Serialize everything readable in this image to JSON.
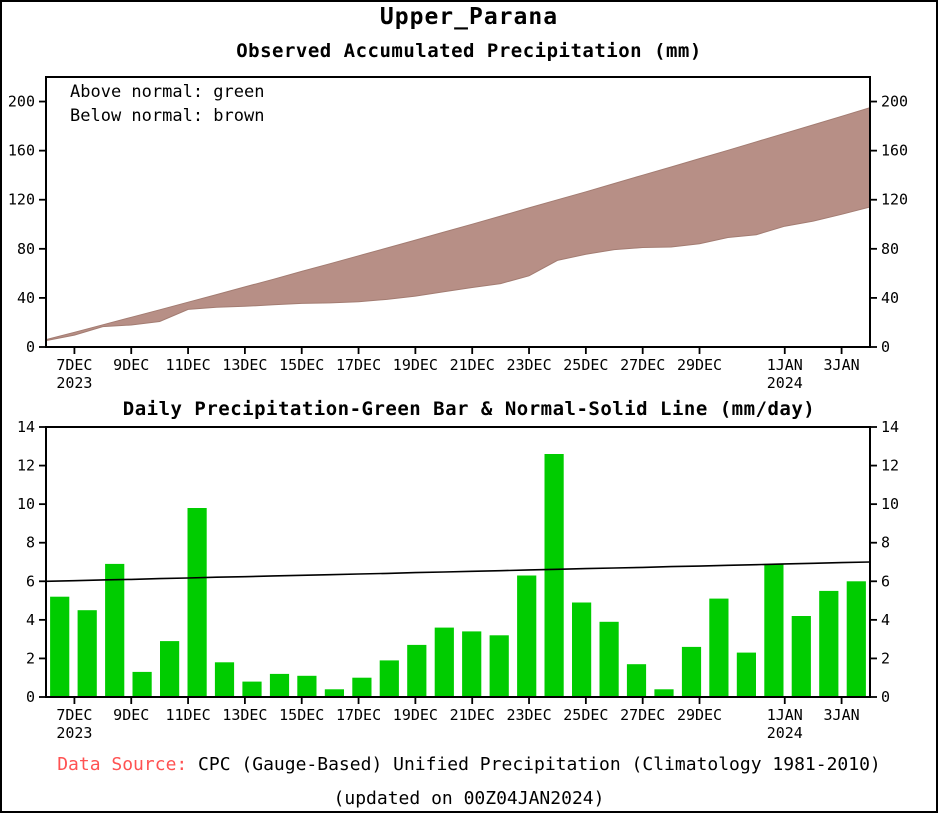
{
  "page_title": "Upper_Parana",
  "colors": {
    "band_brown": "#b78f86",
    "band_brown_edge": "#a37c72",
    "bar_green": "#00cc00",
    "normal_line": "#000000",
    "source_red": "#ff5252",
    "frame": "#000000"
  },
  "top_chart": {
    "title": "Observed Accumulated Precipitation (mm)",
    "legend_line1": "Above normal: green",
    "legend_line2": "Below normal: brown"
  },
  "bottom_chart": {
    "title": "Daily Precipitation-Green Bar & Normal-Solid Line (mm/day)"
  },
  "footer": {
    "source_label": "Data Source:",
    "source_text": "CPC (Gauge-Based) Unified Precipitation (Climatology 1981-2010)",
    "updated": "(updated on 00Z04JAN2024)"
  },
  "chart_data": [
    {
      "type": "area",
      "title": "Observed Accumulated Precipitation (mm)",
      "x_dates": [
        "6DEC",
        "7DEC",
        "8DEC",
        "9DEC",
        "10DEC",
        "11DEC",
        "12DEC",
        "13DEC",
        "14DEC",
        "15DEC",
        "16DEC",
        "17DEC",
        "18DEC",
        "19DEC",
        "20DEC",
        "21DEC",
        "22DEC",
        "23DEC",
        "24DEC",
        "25DEC",
        "26DEC",
        "27DEC",
        "28DEC",
        "29DEC",
        "30DEC",
        "31DEC",
        "1JAN",
        "2JAN",
        "3JAN",
        "4JAN"
      ],
      "series": [
        {
          "name": "Observed accumulated (lower edge of band)",
          "values": [
            5.2,
            9.7,
            16.6,
            17.9,
            20.8,
            30.6,
            32.4,
            33.2,
            34.4,
            35.5,
            35.9,
            36.9,
            38.8,
            41.5,
            45.1,
            48.5,
            51.7,
            58.0,
            70.6,
            75.5,
            79.4,
            81.1,
            81.5,
            84.1,
            89.2,
            91.5,
            98.4,
            102.6,
            108.1,
            114.1
          ]
        },
        {
          "name": "Normal accumulated (upper edge of band)",
          "values": [
            6.0,
            12.0,
            18.1,
            24.2,
            30.3,
            36.5,
            42.7,
            49.0,
            55.2,
            61.6,
            67.9,
            74.3,
            80.7,
            87.1,
            93.6,
            100.1,
            106.7,
            113.3,
            119.9,
            126.5,
            133.2,
            140.0,
            146.7,
            153.5,
            160.3,
            167.2,
            174.1,
            181.0,
            188.0,
            195.0
          ]
        }
      ],
      "ylim": [
        0,
        220
      ],
      "yticks": [
        0,
        40,
        80,
        120,
        160,
        200
      ],
      "xticks": [
        {
          "label": "7DEC",
          "index": 1,
          "year": "2023"
        },
        {
          "label": "9DEC",
          "index": 3
        },
        {
          "label": "11DEC",
          "index": 5
        },
        {
          "label": "13DEC",
          "index": 7
        },
        {
          "label": "15DEC",
          "index": 9
        },
        {
          "label": "17DEC",
          "index": 11
        },
        {
          "label": "19DEC",
          "index": 13
        },
        {
          "label": "21DEC",
          "index": 15
        },
        {
          "label": "23DEC",
          "index": 17
        },
        {
          "label": "25DEC",
          "index": 19
        },
        {
          "label": "27DEC",
          "index": 21
        },
        {
          "label": "29DEC",
          "index": 23
        },
        {
          "label": "1JAN",
          "index": 26,
          "year": "2024"
        },
        {
          "label": "3JAN",
          "index": 28
        }
      ],
      "legend": [
        "Above normal: green",
        "Below normal: brown"
      ],
      "fill_note": "brown band filled between normal (upper) and observed (lower) accumulated curves; observed below normal for whole period"
    },
    {
      "type": "bar",
      "title": "Daily Precipitation-Green Bar & Normal-Solid Line (mm/day)",
      "categories": [
        "6DEC",
        "7DEC",
        "8DEC",
        "9DEC",
        "10DEC",
        "11DEC",
        "12DEC",
        "13DEC",
        "14DEC",
        "15DEC",
        "16DEC",
        "17DEC",
        "18DEC",
        "19DEC",
        "20DEC",
        "21DEC",
        "22DEC",
        "23DEC",
        "24DEC",
        "25DEC",
        "26DEC",
        "27DEC",
        "28DEC",
        "29DEC",
        "30DEC",
        "31DEC",
        "1JAN",
        "2JAN",
        "3JAN",
        "4JAN"
      ],
      "values": [
        5.2,
        4.5,
        6.9,
        1.3,
        2.9,
        9.8,
        1.8,
        0.8,
        1.2,
        1.1,
        0.4,
        1.0,
        1.9,
        2.7,
        3.6,
        3.4,
        3.2,
        6.3,
        12.6,
        4.9,
        3.9,
        1.7,
        0.4,
        2.6,
        5.1,
        2.3,
        6.9,
        4.2,
        5.5,
        6.0
      ],
      "normal_line": [
        6.0,
        6.03,
        6.07,
        6.1,
        6.14,
        6.17,
        6.21,
        6.24,
        6.28,
        6.31,
        6.34,
        6.38,
        6.41,
        6.45,
        6.48,
        6.52,
        6.55,
        6.59,
        6.62,
        6.66,
        6.69,
        6.72,
        6.76,
        6.79,
        6.83,
        6.86,
        6.9,
        6.93,
        6.97,
        7.0
      ],
      "ylim": [
        0,
        14
      ],
      "yticks": [
        0,
        2,
        4,
        6,
        8,
        10,
        12,
        14
      ],
      "xticks": [
        {
          "label": "7DEC",
          "index": 1,
          "year": "2023"
        },
        {
          "label": "9DEC",
          "index": 3
        },
        {
          "label": "11DEC",
          "index": 5
        },
        {
          "label": "13DEC",
          "index": 7
        },
        {
          "label": "15DEC",
          "index": 9
        },
        {
          "label": "17DEC",
          "index": 11
        },
        {
          "label": "19DEC",
          "index": 13
        },
        {
          "label": "21DEC",
          "index": 15
        },
        {
          "label": "23DEC",
          "index": 17
        },
        {
          "label": "25DEC",
          "index": 19
        },
        {
          "label": "27DEC",
          "index": 21
        },
        {
          "label": "29DEC",
          "index": 23
        },
        {
          "label": "1JAN",
          "index": 26,
          "year": "2024"
        },
        {
          "label": "3JAN",
          "index": 28
        }
      ]
    }
  ]
}
